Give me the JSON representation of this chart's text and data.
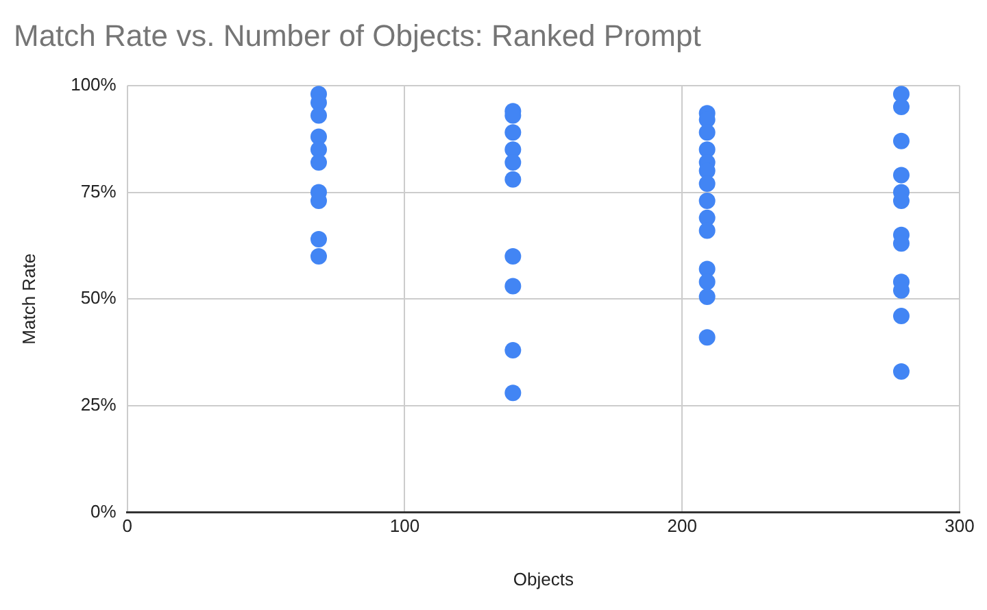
{
  "chart_data": {
    "type": "scatter",
    "title": "Match Rate vs. Number of Objects: Ranked Prompt",
    "xlabel": "Objects",
    "ylabel": "Match Rate",
    "xlim": [
      0,
      300
    ],
    "xticks": [
      0,
      100,
      200,
      300
    ],
    "ylim": [
      0,
      1
    ],
    "yticks": [
      {
        "value": 0,
        "label": "0%"
      },
      {
        "value": 0.25,
        "label": "25%"
      },
      {
        "value": 0.5,
        "label": "50%"
      },
      {
        "value": 0.75,
        "label": "75%"
      },
      {
        "value": 1,
        "label": "100%"
      }
    ],
    "grid": true,
    "legend": false,
    "marker": "circle",
    "series": [
      {
        "color": "#4285f4",
        "x": [
          69,
          69,
          69,
          69,
          69,
          69,
          69,
          69,
          69,
          69,
          139,
          139,
          139,
          139,
          139,
          139,
          139,
          139,
          139,
          139,
          209,
          209,
          209,
          209,
          209,
          209,
          209,
          209,
          209,
          209,
          209,
          209,
          209,
          209,
          279,
          279,
          279,
          279,
          279,
          279,
          279,
          279,
          279,
          279,
          279,
          279
        ],
        "values": [
          0.98,
          0.96,
          0.93,
          0.88,
          0.85,
          0.82,
          0.75,
          0.73,
          0.64,
          0.6,
          0.94,
          0.93,
          0.89,
          0.85,
          0.82,
          0.78,
          0.6,
          0.53,
          0.38,
          0.28,
          0.935,
          0.92,
          0.89,
          0.85,
          0.82,
          0.8,
          0.77,
          0.73,
          0.69,
          0.66,
          0.57,
          0.54,
          0.505,
          0.41,
          0.98,
          0.95,
          0.87,
          0.79,
          0.75,
          0.73,
          0.65,
          0.63,
          0.54,
          0.52,
          0.46,
          0.33
        ]
      }
    ]
  }
}
